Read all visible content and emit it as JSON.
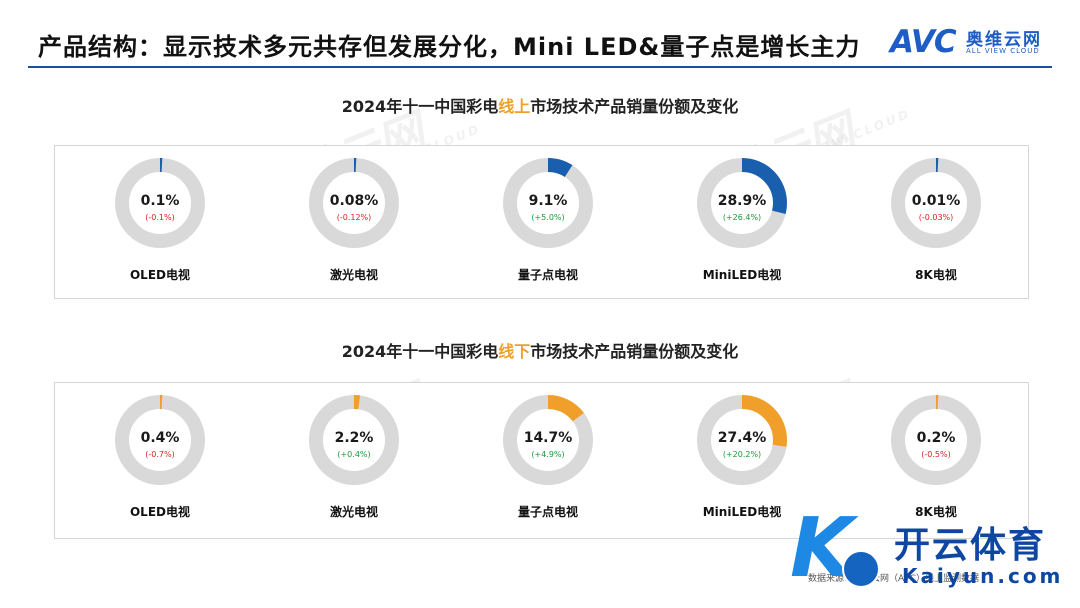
{
  "header": {
    "title": "产品结构：显示技术多元共存但发展分化，Mini LED&量子点是增长主力",
    "logo_mark": "AVC",
    "logo_cn": "奥维云网",
    "logo_en": "ALL VIEW CLOUD",
    "accent_color": "#1e4f9a"
  },
  "sections": {
    "online": {
      "title_prefix": "2024年十一中国彩电",
      "title_highlight": "线上",
      "title_suffix": "市场技术产品销量份额及变化"
    },
    "offline": {
      "title_prefix": "2024年十一中国彩电",
      "title_highlight": "线下",
      "title_suffix": "市场技术产品销量份额及变化"
    }
  },
  "watermark": {
    "mark": "AVC",
    "cn": "奥维云网",
    "en": "ALL VIEW CLOUD"
  },
  "source_text": "数据来源：奥维云网（AVC）线上监测数据",
  "stamp": {
    "mark": "K",
    "cn": "开云体育",
    "en": "Kaiyun.com"
  },
  "chart_data": [
    {
      "type": "pie",
      "subtype": "donut",
      "title": "2024年十一中国彩电线上市场技术产品销量份额及变化",
      "color": "#1a5fae",
      "track_color": "#d9d9d9",
      "categories": [
        "OLED电视",
        "激光电视",
        "量子点电视",
        "MiniLED电视",
        "8K电视"
      ],
      "values": [
        0.1,
        0.08,
        9.1,
        28.9,
        0.01
      ],
      "value_labels": [
        "0.1%",
        "0.08%",
        "9.1%",
        "28.9%",
        "0.01%"
      ],
      "changes": [
        -0.1,
        -0.12,
        5.0,
        26.4,
        -0.03
      ],
      "change_labels": [
        "(-0.1%)",
        "(-0.12%)",
        "(+5.0%)",
        "(+26.4%)",
        "(-0.03%)"
      ],
      "unit": "%"
    },
    {
      "type": "pie",
      "subtype": "donut",
      "title": "2024年十一中国彩电线下市场技术产品销量份额及变化",
      "color": "#f0a02a",
      "track_color": "#d9d9d9",
      "categories": [
        "OLED电视",
        "激光电视",
        "量子点电视",
        "MiniLED电视",
        "8K电视"
      ],
      "values": [
        0.4,
        2.2,
        14.7,
        27.4,
        0.2
      ],
      "value_labels": [
        "0.4%",
        "2.2%",
        "14.7%",
        "27.4%",
        "0.2%"
      ],
      "changes": [
        -0.7,
        0.4,
        4.9,
        20.2,
        -0.5
      ],
      "change_labels": [
        "(-0.7%)",
        "(+0.4%)",
        "(+4.9%)",
        "(+20.2%)",
        "(-0.5%)"
      ],
      "unit": "%"
    }
  ]
}
